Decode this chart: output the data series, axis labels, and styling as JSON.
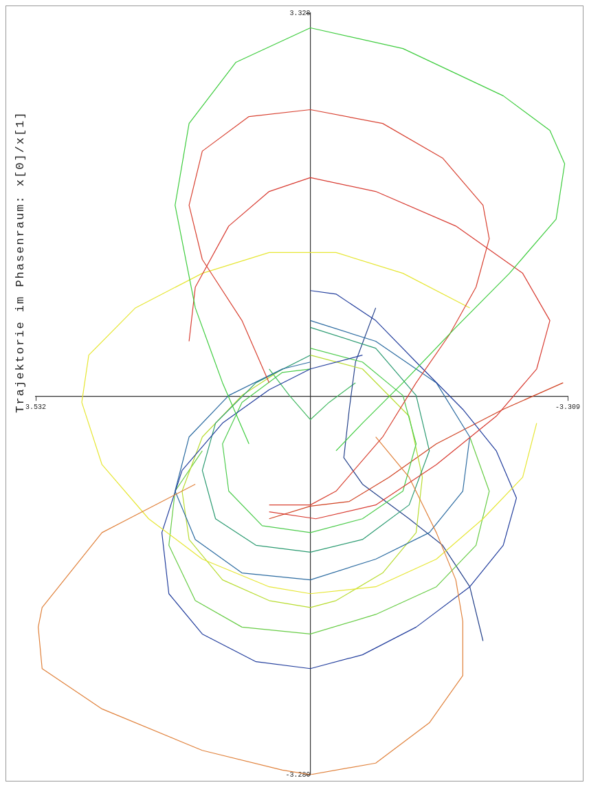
{
  "chart_data": {
    "type": "line",
    "title": "Trajektorie im Phasenraum: x[0]/x[1]",
    "xlim": [
      3.532,
      -3.309
    ],
    "ylim": [
      -3.28,
      3.328
    ],
    "xticks": [
      3.532,
      -3.309
    ],
    "yticks": [
      3.328,
      {
        "value": -3.28,
        "label": "-3.280"
      }
    ],
    "marker": "none",
    "line_style": "solid",
    "series": [
      {
        "color": "#3dcc3d",
        "x": [
          0.79,
          1.13,
          1.48,
          1.74,
          1.56,
          0.96,
          0,
          -1.19,
          -2.48,
          -3.08,
          -3.27,
          -3.16,
          -2.56,
          -1.87,
          -1.19,
          -0.67,
          -0.33
        ],
        "values": [
          -0.41,
          0.12,
          0.77,
          1.66,
          2.37,
          2.9,
          3.2,
          3.02,
          2.61,
          2.31,
          2.02,
          1.54,
          1.07,
          0.6,
          0.12,
          -0.23,
          -0.47
        ]
      },
      {
        "color": "#d84030",
        "x": [
          0.53,
          0.88,
          1.39,
          1.56,
          1.39,
          0.79,
          0,
          -0.93,
          -1.7,
          -2.22,
          -2.3,
          -2.13,
          -1.79,
          -1.36,
          -0.93,
          -0.33,
          0,
          0.53
        ],
        "values": [
          0.12,
          0.66,
          1.19,
          1.66,
          2.13,
          2.43,
          2.49,
          2.37,
          2.07,
          1.66,
          1.37,
          0.95,
          0.54,
          0.12,
          -0.35,
          -0.82,
          -0.94,
          -0.94
        ]
      },
      {
        "color": "#d83a30",
        "x": [
          1.56,
          1.48,
          1.05,
          0.53,
          0,
          -0.84,
          -1.87,
          -2.73,
          -3.08,
          -2.91,
          -2.39,
          -1.62,
          -0.84,
          -0.07,
          0.53
        ],
        "values": [
          0.48,
          0.95,
          1.48,
          1.78,
          1.9,
          1.78,
          1.48,
          1.07,
          0.66,
          0.24,
          -0.17,
          -0.59,
          -0.94,
          -1.06,
          -1.0
        ]
      },
      {
        "color": "#e0803a",
        "x": [
          1.48,
          2.68,
          3.45,
          3.5,
          3.45,
          2.68,
          1.39,
          0.36,
          0,
          -0.84,
          -1.53,
          -1.96,
          -1.96,
          -1.87,
          -1.62,
          -1.27,
          -0.84
        ],
        "values": [
          -0.76,
          -1.18,
          -1.83,
          -2.0,
          -2.36,
          -2.71,
          -3.07,
          -3.24,
          -3.28,
          -3.18,
          -2.83,
          -2.42,
          -1.95,
          -1.59,
          -1.18,
          -0.7,
          -0.35
        ]
      },
      {
        "color": "#e6e632",
        "x": [
          -2.05,
          -1.19,
          -0.33,
          0.53,
          1.39,
          2.25,
          2.85,
          2.94,
          2.68,
          2.08,
          1.39,
          0.53,
          0,
          -0.84,
          -1.62,
          -2.22,
          -2.73,
          -2.91
        ],
        "values": [
          0.77,
          1.07,
          1.25,
          1.25,
          1.07,
          0.77,
          0.36,
          -0.05,
          -0.59,
          -1.06,
          -1.41,
          -1.65,
          -1.71,
          -1.65,
          -1.41,
          -1.06,
          -0.7,
          -0.23
        ]
      },
      {
        "color": "#203c9c",
        "x": [
          0,
          -0.33,
          -0.84,
          -1.36,
          -1.96,
          -2.39,
          -2.65,
          -2.48,
          -2.05,
          -1.36,
          -0.67,
          0,
          0.7,
          1.39,
          1.82,
          1.91,
          1.65,
          1.13,
          0.53,
          0,
          -0.67
        ],
        "values": [
          0.92,
          0.89,
          0.66,
          0.3,
          -0.11,
          -0.47,
          -0.88,
          -1.29,
          -1.65,
          -2.0,
          -2.24,
          -2.36,
          -2.3,
          -2.06,
          -1.71,
          -1.18,
          -0.64,
          -0.23,
          0.06,
          0.24,
          0.36
        ]
      },
      {
        "color": "#2a6aa0",
        "x": [
          0,
          -0.84,
          -1.62,
          -2.05,
          -1.96,
          -1.53,
          -0.84,
          0,
          0.88,
          1.48,
          1.74,
          1.56,
          1.05,
          0.36,
          0
        ],
        "values": [
          0.66,
          0.48,
          0.12,
          -0.35,
          -0.82,
          -1.18,
          -1.41,
          -1.59,
          -1.53,
          -1.24,
          -0.82,
          -0.35,
          0.01,
          0.24,
          0.3
        ]
      },
      {
        "color": "#2a9a70",
        "x": [
          0,
          -0.84,
          -1.36,
          -1.53,
          -1.27,
          -0.67,
          0,
          0.7,
          1.22,
          1.39,
          1.22,
          0.7,
          0
        ],
        "values": [
          0.6,
          0.42,
          0.01,
          -0.47,
          -0.94,
          -1.24,
          -1.35,
          -1.29,
          -1.06,
          -0.64,
          -0.23,
          0.12,
          0.36
        ]
      },
      {
        "color": "#4ccc4c",
        "x": [
          0,
          -0.67,
          -1.19,
          -1.36,
          -1.19,
          -0.67,
          0,
          0.62,
          1.05,
          1.13,
          0.88,
          0.36,
          0
        ],
        "values": [
          0.42,
          0.3,
          0.01,
          -0.41,
          -0.82,
          -1.06,
          -1.18,
          -1.12,
          -0.82,
          -0.41,
          -0.05,
          0.21,
          0.24
        ]
      },
      {
        "color": "#b8dc30",
        "x": [
          0,
          -0.67,
          -1.27,
          -1.44,
          -1.36,
          -0.93,
          -0.33,
          0,
          0.53,
          1.13,
          1.56,
          1.65,
          1.39,
          0.88,
          0.36
        ],
        "values": [
          0.36,
          0.24,
          -0.17,
          -0.7,
          -1.18,
          -1.53,
          -1.77,
          -1.83,
          -1.77,
          -1.59,
          -1.24,
          -0.82,
          -0.35,
          0.01,
          0.24
        ]
      },
      {
        "color": "#66cc44",
        "x": [
          -2.05,
          -2.3,
          -2.13,
          -1.62,
          -0.84,
          0,
          0.88,
          1.48,
          1.82,
          1.74,
          1.39
        ],
        "values": [
          -0.35,
          -0.82,
          -1.29,
          -1.65,
          -1.89,
          -2.06,
          -2.0,
          -1.77,
          -1.29,
          -0.82,
          -0.47
        ]
      },
      {
        "color": "#d04020",
        "x": [
          0.53,
          0,
          -0.5,
          -1.01,
          -1.62,
          -2.48,
          -3.25
        ],
        "values": [
          -1.06,
          -0.95,
          -0.91,
          -0.7,
          -0.41,
          -0.11,
          0.12
        ]
      },
      {
        "color": "#23408a",
        "x": [
          -0.84,
          -0.58,
          -0.5,
          -0.43,
          -0.67,
          -1.27,
          -1.7,
          -2.05,
          -2.22
        ],
        "values": [
          0.77,
          0.3,
          -0.11,
          -0.53,
          -0.76,
          -1.06,
          -1.29,
          -1.65,
          -2.12
        ]
      },
      {
        "color": "#40b860",
        "x": [
          0.53,
          0.27,
          0,
          -0.24,
          -0.58
        ],
        "values": [
          0.24,
          0.01,
          -0.2,
          -0.05,
          0.12
        ]
      }
    ]
  }
}
